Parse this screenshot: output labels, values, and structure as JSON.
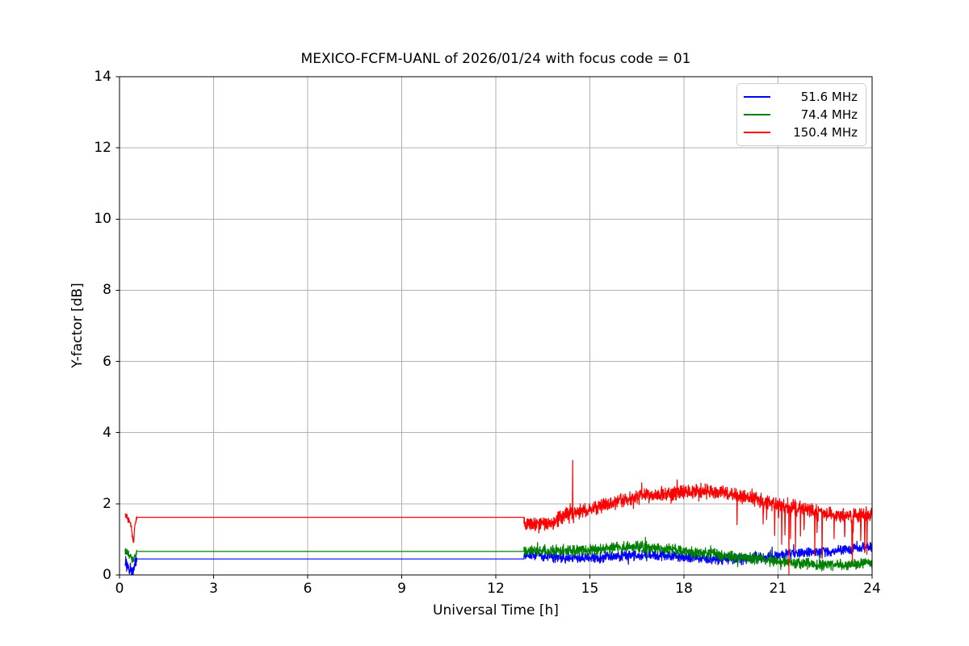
{
  "figure": {
    "background": "#ffffff",
    "text_color": "#000000"
  },
  "chart_data": {
    "type": "line",
    "title": "MEXICO-FCFM-UANL of 2026/01/24 with focus code = 01",
    "xlabel": "Universal Time [h]",
    "ylabel": "Y-factor [dB]",
    "xlim": [
      0,
      24
    ],
    "ylim": [
      0,
      14
    ],
    "xticks": [
      0,
      3,
      6,
      9,
      12,
      15,
      18,
      21,
      24
    ],
    "yticks": [
      0,
      2,
      4,
      6,
      8,
      10,
      12,
      14
    ],
    "grid": true,
    "grid_color": "#b0b0b0",
    "spine_color": "#000000",
    "legend": {
      "position": "upper right",
      "entries": [
        "51.6 MHz",
        "74.4 MHz",
        "150.4 MHz"
      ]
    },
    "series": [
      {
        "name": "51.6 MHz",
        "color": "#0000ff",
        "description": "blue curve: startup transient 0.2-0.55 h dipping to ~0.1 dB, flat 0.45 dB from 0.55-12.9 h, then noisy ~0.45-0.6 dB rising to ~0.8 dB by 24 h",
        "segments": [
          {
            "type": "noisy",
            "x0": 0.18,
            "x1": 0.55,
            "dx": 0.006,
            "amp": 0.13,
            "anchors": [
              [
                0.18,
                0.35
              ],
              [
                0.28,
                0.22
              ],
              [
                0.36,
                0.13
              ],
              [
                0.44,
                0.1
              ],
              [
                0.48,
                0.22
              ],
              [
                0.55,
                0.45
              ]
            ]
          },
          {
            "type": "flat",
            "x0": 0.55,
            "x1": 12.9,
            "y": 0.45
          },
          {
            "type": "noisy",
            "x0": 12.9,
            "x1": 24.0,
            "dx": 0.008,
            "amp": 0.1,
            "anchors": [
              [
                12.9,
                0.55
              ],
              [
                13.2,
                0.58
              ],
              [
                13.5,
                0.52
              ],
              [
                14.0,
                0.5
              ],
              [
                14.5,
                0.48
              ],
              [
                15.0,
                0.47
              ],
              [
                15.5,
                0.5
              ],
              [
                16.0,
                0.53
              ],
              [
                16.5,
                0.55
              ],
              [
                17.0,
                0.56
              ],
              [
                17.5,
                0.53
              ],
              [
                18.0,
                0.5
              ],
              [
                18.5,
                0.48
              ],
              [
                19.0,
                0.45
              ],
              [
                19.5,
                0.44
              ],
              [
                20.0,
                0.45
              ],
              [
                20.5,
                0.5
              ],
              [
                21.0,
                0.55
              ],
              [
                21.5,
                0.6
              ],
              [
                22.0,
                0.63
              ],
              [
                22.5,
                0.66
              ],
              [
                23.0,
                0.7
              ],
              [
                23.5,
                0.75
              ],
              [
                24.0,
                0.8
              ]
            ]
          }
        ]
      },
      {
        "name": "74.4 MHz",
        "color": "#008000",
        "description": "green curve: startup transient 0.2-0.55 h, flat 0.66 dB from 0.55-12.9 h, noisy peak ~0.8 dB near 16.4 h falling to ~0.3 dB by 22-24 h",
        "segments": [
          {
            "type": "noisy",
            "x0": 0.18,
            "x1": 0.55,
            "dx": 0.006,
            "amp": 0.07,
            "anchors": [
              [
                0.18,
                0.7
              ],
              [
                0.26,
                0.62
              ],
              [
                0.34,
                0.52
              ],
              [
                0.42,
                0.42
              ],
              [
                0.46,
                0.46
              ],
              [
                0.55,
                0.66
              ]
            ]
          },
          {
            "type": "flat",
            "x0": 0.55,
            "x1": 12.9,
            "y": 0.66
          },
          {
            "type": "noisy",
            "x0": 12.9,
            "x1": 24.0,
            "dx": 0.008,
            "amp": 0.11,
            "anchors": [
              [
                12.9,
                0.67
              ],
              [
                13.5,
                0.68
              ],
              [
                14.0,
                0.69
              ],
              [
                14.5,
                0.7
              ],
              [
                15.0,
                0.71
              ],
              [
                15.5,
                0.74
              ],
              [
                16.0,
                0.78
              ],
              [
                16.4,
                0.8
              ],
              [
                17.0,
                0.77
              ],
              [
                17.5,
                0.73
              ],
              [
                18.0,
                0.68
              ],
              [
                18.5,
                0.63
              ],
              [
                19.0,
                0.58
              ],
              [
                19.5,
                0.52
              ],
              [
                20.0,
                0.47
              ],
              [
                20.5,
                0.43
              ],
              [
                21.0,
                0.38
              ],
              [
                21.5,
                0.33
              ],
              [
                22.0,
                0.3
              ],
              [
                22.5,
                0.28
              ],
              [
                23.0,
                0.28
              ],
              [
                23.5,
                0.3
              ],
              [
                24.0,
                0.33
              ]
            ]
          }
        ]
      },
      {
        "name": "150.4 MHz",
        "color": "#ff0000",
        "description": "red curve: startup transient dipping to ~0.9 dB near 0.45 h, flat 1.62 dB from 0.55-12.9 h, noisy hump peaking ~2.35 dB near 18.5 h, upward spike to ~3.2 dB at 14.45 h, deep dropout to ~0 dB at 21.35 h, frequent downward spikes after 19.4 h, ending ~1.7 dB",
        "segments": [
          {
            "type": "noisy",
            "x0": 0.18,
            "x1": 0.55,
            "dx": 0.006,
            "amp": 0.05,
            "anchors": [
              [
                0.18,
                1.7
              ],
              [
                0.25,
                1.62
              ],
              [
                0.3,
                1.52
              ],
              [
                0.36,
                1.42
              ],
              [
                0.42,
                1.05
              ],
              [
                0.455,
                0.88
              ],
              [
                0.48,
                1.35
              ],
              [
                0.55,
                1.62
              ]
            ]
          },
          {
            "type": "flat",
            "x0": 0.55,
            "x1": 12.9,
            "y": 1.62
          },
          {
            "type": "noisy",
            "x0": 12.9,
            "x1": 24.0,
            "dx": 0.008,
            "amp": 0.14,
            "anchors": [
              [
                12.9,
                1.45
              ],
              [
                13.5,
                1.42
              ],
              [
                13.85,
                1.46
              ],
              [
                14.05,
                1.62
              ],
              [
                14.3,
                1.7
              ],
              [
                14.6,
                1.75
              ],
              [
                15.0,
                1.85
              ],
              [
                15.5,
                1.97
              ],
              [
                16.0,
                2.1
              ],
              [
                16.5,
                2.18
              ],
              [
                17.0,
                2.25
              ],
              [
                17.5,
                2.29
              ],
              [
                18.0,
                2.32
              ],
              [
                18.5,
                2.36
              ],
              [
                19.0,
                2.34
              ],
              [
                19.5,
                2.28
              ],
              [
                20.0,
                2.18
              ],
              [
                20.5,
                2.08
              ],
              [
                21.0,
                2.0
              ],
              [
                21.5,
                1.92
              ],
              [
                22.0,
                1.82
              ],
              [
                22.5,
                1.75
              ],
              [
                23.0,
                1.7
              ],
              [
                23.5,
                1.67
              ],
              [
                24.0,
                1.72
              ]
            ],
            "spikes": [
              {
                "x": 14.45,
                "y": 3.22
              },
              {
                "x": 21.35,
                "y": 0.02
              }
            ],
            "random_down_spikes": {
              "x0": 19.4,
              "x1": 24.0,
              "prob": 0.04,
              "depth": [
                0.35,
                1.3
              ]
            }
          }
        ]
      }
    ]
  }
}
